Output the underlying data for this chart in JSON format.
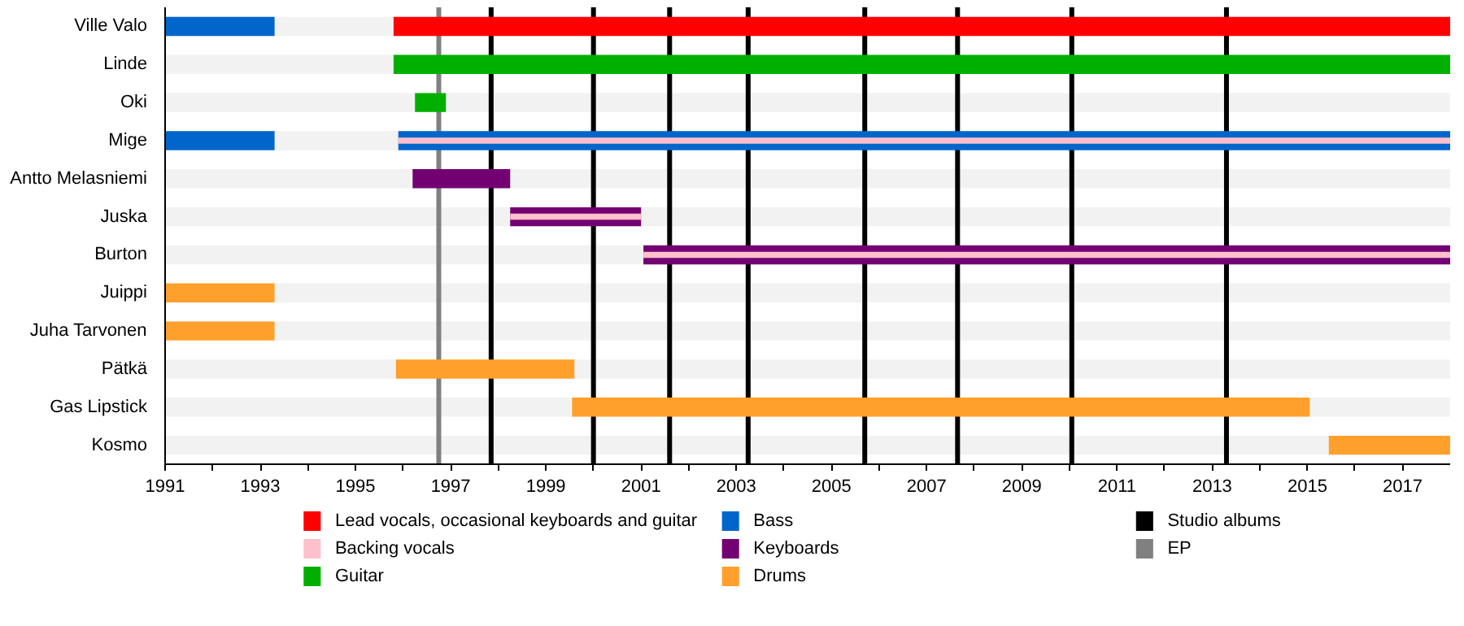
{
  "chart_data": {
    "type": "bar",
    "orientation": "horizontal",
    "legend": "bottom",
    "grid": false,
    "categories": [
      "Ville Valo",
      "Linde",
      "Oki",
      "Mige",
      "Antto Melasniemi",
      "Juska",
      "Burton",
      "Juippi",
      "Juha Tarvonen",
      "Pätkä",
      "Gas Lipstick",
      "Kosmo"
    ],
    "series": [
      {
        "name": "Lead vocals, occasional keyboards and guitar",
        "color": "#ff0000",
        "base": [
          1995.8,
          null,
          null,
          null,
          null,
          null,
          null,
          null,
          null,
          null,
          null,
          null
        ],
        "values": [
          22.2,
          null,
          null,
          null,
          null,
          null,
          null,
          null,
          null,
          null,
          null,
          null
        ]
      },
      {
        "name": "Backing vocals",
        "color": "#ffc0cb",
        "base": [
          null,
          null,
          null,
          1995.9,
          null,
          1998.25,
          2001.05,
          null,
          null,
          null,
          null,
          null
        ],
        "values": [
          null,
          null,
          null,
          22.1,
          null,
          2.75,
          16.95,
          null,
          null,
          null,
          null,
          null
        ]
      },
      {
        "name": "Guitar",
        "color": "#00b000",
        "base": [
          null,
          1995.8,
          1996.25,
          null,
          null,
          null,
          null,
          null,
          null,
          null,
          null,
          null
        ],
        "values": [
          null,
          22.2,
          0.65,
          null,
          null,
          null,
          null,
          null,
          null,
          null,
          null,
          null
        ]
      },
      {
        "name": "Bass",
        "color": "#0066cc",
        "base": [
          1991,
          null,
          null,
          1991,
          null,
          null,
          null,
          null,
          null,
          null,
          null,
          null
        ],
        "values": [
          2.3,
          null,
          null,
          2.3,
          null,
          null,
          null,
          null,
          null,
          null,
          null,
          null
        ]
      },
      {
        "name": "Keyboards",
        "color": "#730073",
        "base": [
          null,
          null,
          null,
          null,
          1996.2,
          1998.25,
          2001.05,
          null,
          null,
          null,
          null,
          null
        ],
        "values": [
          null,
          null,
          null,
          null,
          2.05,
          2.75,
          16.95,
          null,
          null,
          null,
          null,
          null
        ]
      },
      {
        "name": "Drums",
        "color": "#ffa02c",
        "base": [
          null,
          null,
          null,
          null,
          null,
          null,
          null,
          1991,
          1991,
          1995.85,
          1999.55,
          2015.45
        ],
        "values": [
          null,
          null,
          null,
          null,
          null,
          null,
          null,
          2.3,
          2.3,
          3.75,
          15.5,
          2.55
        ]
      },
      {
        "color": "#0066cc",
        "base": [
          null,
          null,
          null,
          1995.9,
          null,
          null,
          null,
          null,
          null,
          null,
          null,
          null
        ],
        "values": [
          null,
          null,
          null,
          22.1,
          null,
          null,
          null,
          null,
          null,
          null,
          null,
          null
        ]
      }
    ],
    "xlim": [
      1991,
      2018
    ],
    "xticks": [
      1991,
      {
        "value": 1992,
        "label": null
      },
      1993,
      {
        "value": 1994,
        "label": null
      },
      1995,
      {
        "value": 1996,
        "label": null
      },
      1997,
      {
        "value": 1998,
        "label": null
      },
      1999,
      {
        "value": 2000,
        "label": null
      },
      2001,
      {
        "value": 2002,
        "label": null
      },
      2003,
      {
        "value": 2004,
        "label": null
      },
      2005,
      {
        "value": 2006,
        "label": null
      },
      2007,
      {
        "value": 2008,
        "label": null
      },
      2009,
      {
        "value": 2010,
        "label": null
      },
      2011,
      {
        "value": 2012,
        "label": null
      },
      2013,
      {
        "value": 2014,
        "label": null
      },
      2015,
      {
        "value": 2016,
        "label": null
      },
      2017
    ],
    "ref_lines": [
      {
        "axis": "x",
        "value": 1997.85,
        "label": "Studio albums",
        "color": "#000000"
      },
      {
        "axis": "x",
        "value": 2000.0,
        "color": "#000000"
      },
      {
        "axis": "x",
        "value": 2001.6,
        "color": "#000000"
      },
      {
        "axis": "x",
        "value": 2003.25,
        "color": "#000000"
      },
      {
        "axis": "x",
        "value": 2005.7,
        "color": "#000000"
      },
      {
        "axis": "x",
        "value": 2007.65,
        "color": "#000000"
      },
      {
        "axis": "x",
        "value": 2010.05,
        "color": "#000000"
      },
      {
        "axis": "x",
        "value": 2013.3,
        "color": "#000000"
      },
      {
        "axis": "x",
        "value": 1996.75,
        "label": "EP",
        "color": "#808080"
      }
    ]
  }
}
